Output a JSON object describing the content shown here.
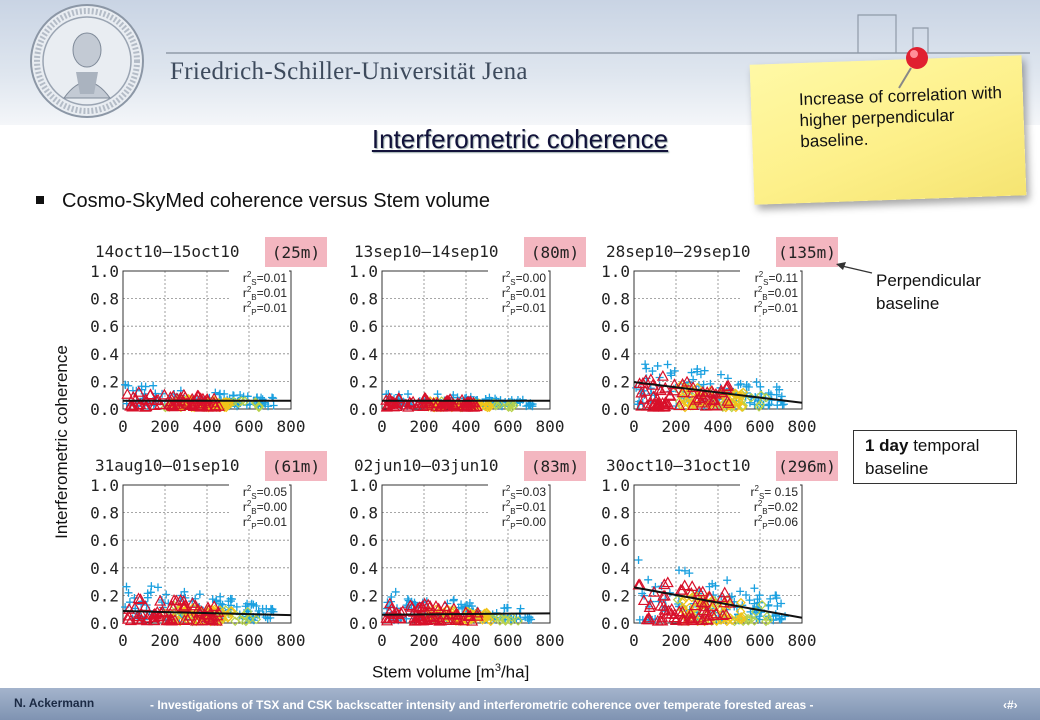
{
  "header": {
    "university": "Friedrich-Schiller-Universität Jena"
  },
  "title": "Interferometric coherence",
  "bullet": "Cosmo-SkyMed coherence versus Stem volume",
  "note": "Increase of correlation with higher perpendicular baseline.",
  "annotations": {
    "perpendicular": "Perpendicular baseline",
    "temporal_bold": "1 day",
    "temporal_rest": " temporal baseline"
  },
  "ylabel": "Interferometric coherence",
  "xlabel_main": "Stem volume [m",
  "xlabel_sup": "3",
  "xlabel_tail": "/ha]",
  "footer": {
    "author": "N. Ackermann",
    "text": "- Investigations of TSX and CSK backscatter intensity and interferometric coherence over temperate forested areas -",
    "page": "‹#›"
  },
  "colors": {
    "series_blue": "#1aa0e0",
    "series_yellow": "#f2c418",
    "series_red": "#d8102a",
    "series_green": "#b8d24a",
    "baseline_highlight": "#f3b6c0",
    "note_yellow": "#fdf08a"
  },
  "chart_data": [
    {
      "type": "scatter",
      "title": "14oct10—15oct10",
      "baseline": "(25m)",
      "stats": [
        {
          "sym": "S",
          "val": "0.01"
        },
        {
          "sym": "B",
          "val": "0.01"
        },
        {
          "sym": "P",
          "val": "0.01"
        }
      ],
      "xticks": [
        "0",
        "200",
        "400",
        "600",
        "800"
      ],
      "yticks": [
        "0.0",
        "0.2",
        "0.4",
        "0.6",
        "0.8",
        "1.0"
      ],
      "xlim": [
        0,
        800
      ],
      "ylim": [
        0,
        1
      ],
      "spread": 0.18,
      "slope": 0.0
    },
    {
      "type": "scatter",
      "title": "13sep10—14sep10",
      "baseline": "(80m)",
      "stats": [
        {
          "sym": "S",
          "val": "0.00"
        },
        {
          "sym": "B",
          "val": "0.01"
        },
        {
          "sym": "P",
          "val": "0.01"
        }
      ],
      "xticks": [
        "0",
        "200",
        "400",
        "600",
        "800"
      ],
      "yticks": [
        "0.0",
        "0.2",
        "0.4",
        "0.6",
        "0.8",
        "1.0"
      ],
      "xlim": [
        0,
        800
      ],
      "ylim": [
        0,
        1
      ],
      "spread": 0.12,
      "slope": 0.0
    },
    {
      "type": "scatter",
      "title": "28sep10—29sep10",
      "baseline": "(135m)",
      "stats": [
        {
          "sym": "S",
          "val": "0.11"
        },
        {
          "sym": "B",
          "val": "0.01"
        },
        {
          "sym": "P",
          "val": "0.01"
        }
      ],
      "xticks": [
        "0",
        "200",
        "400",
        "600",
        "800"
      ],
      "yticks": [
        "0.0",
        "0.2",
        "0.4",
        "0.6",
        "0.8",
        "1.0"
      ],
      "xlim": [
        0,
        800
      ],
      "ylim": [
        0,
        1
      ],
      "spread": 0.38,
      "slope": -0.15
    },
    {
      "type": "scatter",
      "title": "31aug10—01sep10",
      "baseline": "(61m)",
      "stats": [
        {
          "sym": "S",
          "val": "0.05"
        },
        {
          "sym": "B",
          "val": "0.00"
        },
        {
          "sym": "P",
          "val": "0.01"
        }
      ],
      "xticks": [
        "0",
        "200",
        "400",
        "600",
        "800"
      ],
      "yticks": [
        "0.0",
        "0.2",
        "0.4",
        "0.6",
        "0.8",
        "1.0"
      ],
      "xlim": [
        0,
        800
      ],
      "ylim": [
        0,
        1
      ],
      "spread": 0.3,
      "slope": -0.03
    },
    {
      "type": "scatter",
      "title": "02jun10—03jun10",
      "baseline": "(83m)",
      "stats": [
        {
          "sym": "S",
          "val": "0.03"
        },
        {
          "sym": "B",
          "val": "0.01"
        },
        {
          "sym": "P",
          "val": "0.00"
        }
      ],
      "xticks": [
        "0",
        "200",
        "400",
        "600",
        "800"
      ],
      "yticks": [
        "0.0",
        "0.2",
        "0.4",
        "0.6",
        "0.8",
        "1.0"
      ],
      "xlim": [
        0,
        800
      ],
      "ylim": [
        0,
        1
      ],
      "spread": 0.22,
      "slope": 0.01
    },
    {
      "type": "scatter",
      "title": "30oct10—31oct10",
      "baseline": "(296m)",
      "stats": [
        {
          "sym": "S",
          "val": " 0.15"
        },
        {
          "sym": "B",
          "val": "0.02"
        },
        {
          "sym": "P",
          "val": "0.06"
        }
      ],
      "xticks": [
        "0",
        "200",
        "400",
        "600",
        "800"
      ],
      "yticks": [
        "0.0",
        "0.2",
        "0.4",
        "0.6",
        "0.8",
        "1.0"
      ],
      "xlim": [
        0,
        800
      ],
      "ylim": [
        0,
        1
      ],
      "spread": 0.5,
      "slope": -0.22
    }
  ]
}
